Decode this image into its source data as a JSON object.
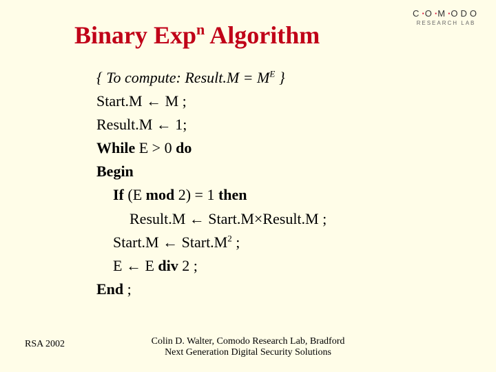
{
  "title": {
    "pre": "Binary Exp",
    "sup": "n",
    "post": " Algorithm",
    "color": "#c00018",
    "fontsize": 36
  },
  "logo": {
    "brand_pre": "C",
    "brand_mid": "O",
    "brand_post": "M",
    "brand_rest": "ODO",
    "sub": "RESEARCH LAB"
  },
  "algorithm": {
    "line1": "{ To compute: Result.M = M",
    "line1_sup": "E",
    "line1_end": " }",
    "line2_a": "Start.M   ",
    "line2_arrow": "←",
    "line2_b": "  M  ;",
    "line3_a": "Result.M ",
    "line3_arrow": "←",
    "line3_b": " 1;",
    "line4_a": "While",
    "line4_b": " E > 0 ",
    "line4_c": "do",
    "line5": "Begin",
    "line6_a": "If",
    "line6_b": " (E ",
    "line6_c": "mod",
    "line6_d": " 2) = 1 ",
    "line6_e": "then",
    "line7_a": "Result.M ",
    "line7_arrow": "←",
    "line7_b": " Start.M×Result.M ;",
    "line8_a": "Start.M ",
    "line8_arrow": "←",
    "line8_b": " Start.M",
    "line8_sup": "2",
    "line8_c": " ;",
    "line9_a": "E ",
    "line9_arrow": "←",
    "line9_b": " E ",
    "line9_c": "div",
    "line9_d": " 2 ;",
    "line10_a": "End",
    "line10_b": " ;"
  },
  "footer": {
    "left": "RSA 2002",
    "center1": "Colin D. Walter, Comodo Research Lab, Bradford",
    "center2": "Next Generation Digital Security Solutions"
  },
  "style": {
    "background": "#fffde8",
    "body_fontsize": 22,
    "footer_fontsize": 14
  }
}
